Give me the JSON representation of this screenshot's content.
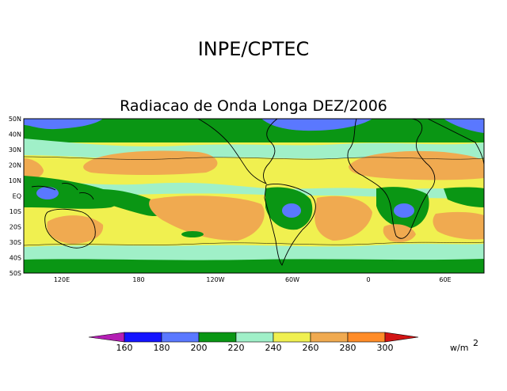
{
  "header": {
    "agency": "INPE/CPTEC"
  },
  "map": {
    "title": "Radiacao de Onda Longa DEZ/2006",
    "lat_labels": [
      "50N",
      "40N",
      "30N",
      "20N",
      "10N",
      "EQ",
      "10S",
      "20S",
      "30S",
      "40S",
      "50S"
    ],
    "lon_labels": [
      "120E",
      "180",
      "120W",
      "60W",
      "0",
      "60E"
    ]
  },
  "colorbar": {
    "values": [
      "160",
      "180",
      "200",
      "220",
      "240",
      "260",
      "280",
      "300"
    ],
    "colors": [
      "#b41eb4",
      "#1414ff",
      "#5a78ff",
      "#0a9614",
      "#a0f0c8",
      "#f0f050",
      "#f0aa50",
      "#ff8c28",
      "#d21414"
    ],
    "unit_base": "w/m",
    "unit_exp": "2"
  }
}
